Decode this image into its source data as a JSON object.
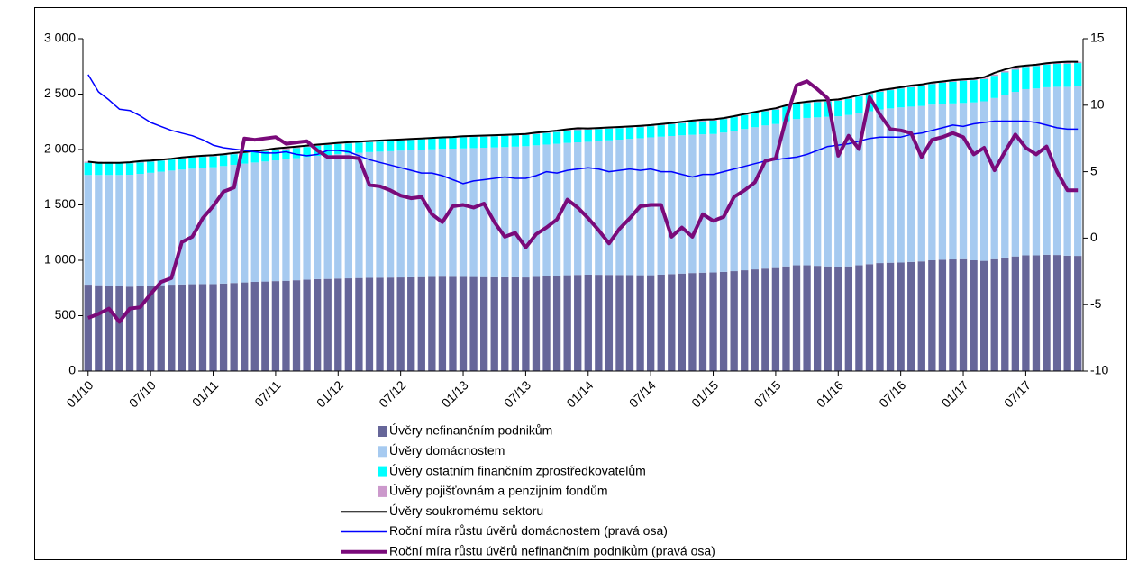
{
  "chart_data": {
    "type": "combo",
    "categories": [
      "01/10",
      null,
      null,
      null,
      null,
      null,
      "07/10",
      null,
      null,
      null,
      null,
      null,
      "01/11",
      null,
      null,
      null,
      null,
      null,
      "07/11",
      null,
      null,
      null,
      null,
      null,
      "01/12",
      null,
      null,
      null,
      null,
      null,
      "07/12",
      null,
      null,
      null,
      null,
      null,
      "01/13",
      null,
      null,
      null,
      null,
      null,
      "07/13",
      null,
      null,
      null,
      null,
      null,
      "01/14",
      null,
      null,
      null,
      null,
      null,
      "07/14",
      null,
      null,
      null,
      null,
      null,
      "01/15",
      null,
      null,
      null,
      null,
      null,
      "07/15",
      null,
      null,
      null,
      null,
      null,
      "01/16",
      null,
      null,
      null,
      null,
      null,
      "07/16",
      null,
      null,
      null,
      null,
      null,
      "01/17",
      null,
      null,
      null,
      null,
      null,
      "07/17",
      null,
      null,
      null,
      null,
      null
    ],
    "ylim": [
      0,
      3000
    ],
    "yticks": [
      0,
      500,
      {
        "value": 1000,
        "label": "1 000"
      },
      {
        "value": 1500,
        "label": "1 500"
      },
      {
        "value": 2000,
        "label": "2 000"
      },
      {
        "value": 2500,
        "label": "2 500"
      },
      {
        "value": 3000,
        "label": "3 000"
      }
    ],
    "y2lim": [
      -10,
      15
    ],
    "y2ticks": [
      -10,
      -5,
      0,
      5,
      10,
      15
    ],
    "series": [
      {
        "name": "Úvěry nefinančním podnikům",
        "type": "bar",
        "color": "#666699",
        "values": [
          780,
          775,
          770,
          765,
          762,
          765,
          770,
          775,
          780,
          782,
          784,
          785,
          785,
          790,
          795,
          800,
          805,
          808,
          812,
          815,
          820,
          825,
          830,
          832,
          835,
          837,
          840,
          842,
          843,
          844,
          845,
          846,
          848,
          850,
          852,
          851,
          850,
          849,
          848,
          847,
          846,
          846,
          845,
          850,
          855,
          860,
          865,
          868,
          870,
          869,
          868,
          867,
          866,
          865,
          865,
          870,
          875,
          880,
          885,
          888,
          890,
          895,
          902,
          910,
          918,
          925,
          930,
          945,
          955,
          955,
          950,
          945,
          940,
          945,
          955,
          965,
          975,
          978,
          980,
          985,
          990,
          1000,
          1005,
          1008,
          1010,
          1000,
          995,
          1010,
          1025,
          1035,
          1045,
          1045,
          1050,
          1048,
          1042,
          1040
        ]
      },
      {
        "name": "Úvěry domácnostem",
        "type": "bar",
        "color": "#a6caf0",
        "values": [
          990,
          995,
          1000,
          1005,
          1010,
          1015,
          1020,
          1025,
          1030,
          1037,
          1043,
          1049,
          1055,
          1061,
          1067,
          1073,
          1078,
          1084,
          1090,
          1096,
          1102,
          1108,
          1113,
          1119,
          1125,
          1128,
          1131,
          1135,
          1138,
          1141,
          1145,
          1148,
          1150,
          1152,
          1155,
          1157,
          1160,
          1164,
          1168,
          1172,
          1176,
          1180,
          1185,
          1188,
          1190,
          1192,
          1195,
          1197,
          1200,
          1207,
          1215,
          1222,
          1230,
          1237,
          1245,
          1246,
          1247,
          1248,
          1248,
          1249,
          1250,
          1258,
          1267,
          1275,
          1283,
          1292,
          1300,
          1310,
          1320,
          1330,
          1340,
          1350,
          1360,
          1367,
          1373,
          1380,
          1387,
          1393,
          1400,
          1402,
          1403,
          1405,
          1407,
          1408,
          1410,
          1425,
          1440,
          1455,
          1470,
          1485,
          1500,
          1506,
          1512,
          1518,
          1524,
          1530
        ]
      },
      {
        "name": "Úvěry ostatním finančním zprostředkovatelům",
        "type": "bar",
        "color": "#00ffff",
        "values": [
          110,
          110,
          108,
          106,
          104,
          102,
          100,
          100,
          100,
          100,
          100,
          100,
          98,
          97,
          96,
          95,
          94,
          92,
          90,
          90,
          90,
          90,
          90,
          90,
          90,
          90,
          90,
          90,
          90,
          90,
          92,
          93,
          95,
          96,
          97,
          99,
          100,
          100,
          100,
          100,
          100,
          100,
          100,
          102,
          104,
          106,
          108,
          110,
          110,
          108,
          106,
          104,
          102,
          100,
          100,
          103,
          107,
          110,
          114,
          117,
          120,
          122,
          123,
          125,
          127,
          128,
          130,
          132,
          133,
          135,
          137,
          138,
          140,
          145,
          150,
          155,
          160,
          165,
          170,
          175,
          180,
          185,
          190,
          195,
          200,
          200,
          200,
          200,
          200,
          200,
          200,
          202,
          204,
          206,
          208,
          210
        ]
      },
      {
        "name": "Úvěry pojišťovnám a penzijním fondům",
        "type": "bar",
        "color": "#cc99cc",
        "values": [
          10,
          10,
          10,
          10,
          10,
          10,
          10,
          10,
          10,
          10,
          10,
          10,
          10,
          10,
          10,
          10,
          10,
          10,
          10,
          10,
          10,
          10,
          10,
          10,
          10,
          10,
          10,
          10,
          10,
          10,
          10,
          10,
          10,
          10,
          10,
          10,
          10,
          10,
          10,
          10,
          10,
          10,
          10,
          10,
          10,
          10,
          10,
          10,
          10,
          10,
          10,
          10,
          10,
          10,
          10,
          10,
          10,
          10,
          10,
          10,
          12,
          12,
          12,
          12,
          12,
          12,
          12,
          12,
          12,
          12,
          12,
          12,
          12,
          12,
          12,
          12,
          12,
          12,
          12,
          12,
          12,
          12,
          12,
          12,
          12,
          12,
          12,
          12,
          12,
          12,
          12,
          12,
          12,
          12,
          12,
          12
        ]
      },
      {
        "name": "Úvěry soukromému sektoru",
        "type": "line",
        "color": "#000000",
        "width": 2,
        "values": [
          1890,
          1880,
          1880,
          1880,
          1885,
          1895,
          1900,
          1908,
          1917,
          1929,
          1937,
          1944,
          1950,
          1958,
          1968,
          1978,
          1987,
          1997,
          2010,
          2018,
          2027,
          2036,
          2045,
          2052,
          2060,
          2066,
          2071,
          2077,
          2081,
          2086,
          2090,
          2095,
          2099,
          2105,
          2110,
          2113,
          2120,
          2123,
          2126,
          2129,
          2132,
          2136,
          2140,
          2152,
          2161,
          2171,
          2183,
          2192,
          2190,
          2194,
          2199,
          2203,
          2208,
          2214,
          2220,
          2229,
          2239,
          2250,
          2261,
          2269,
          2272,
          2284,
          2301,
          2320,
          2338,
          2357,
          2372,
          2399,
          2420,
          2432,
          2442,
          2445,
          2452,
          2469,
          2490,
          2512,
          2534,
          2548,
          2562,
          2577,
          2587,
          2604,
          2614,
          2625,
          2632,
          2637,
          2652,
          2692,
          2722,
          2747,
          2757,
          2765,
          2778,
          2786,
          2792,
          2792
        ]
      },
      {
        "name": "Roční míra růstu úvěrů domácnostem (pravá osa)",
        "type": "line",
        "axis": "y2",
        "color": "#0000ff",
        "width": 1.5,
        "values": [
          12.3,
          11.0,
          10.4,
          9.7,
          9.6,
          9.2,
          8.7,
          8.4,
          8.1,
          7.9,
          7.7,
          7.4,
          7.0,
          6.8,
          6.7,
          6.6,
          6.5,
          6.4,
          6.4,
          6.5,
          6.3,
          6.2,
          6.3,
          6.6,
          6.6,
          6.5,
          6.2,
          5.9,
          5.7,
          5.5,
          5.3,
          5.1,
          4.9,
          4.9,
          4.7,
          4.4,
          4.1,
          4.3,
          4.4,
          4.5,
          4.6,
          4.5,
          4.5,
          4.7,
          5.0,
          4.9,
          5.1,
          5.2,
          5.3,
          5.2,
          5.0,
          5.1,
          5.2,
          5.1,
          5.2,
          5.0,
          5.0,
          4.8,
          4.6,
          4.8,
          4.8,
          5.0,
          5.2,
          5.4,
          5.6,
          5.8,
          5.9,
          6.0,
          6.1,
          6.3,
          6.6,
          6.9,
          7.0,
          7.1,
          7.3,
          7.5,
          7.6,
          7.6,
          7.6,
          7.8,
          7.9,
          8.1,
          8.3,
          8.5,
          8.4,
          8.6,
          8.7,
          8.8,
          8.8,
          8.8,
          8.8,
          8.7,
          8.5,
          8.3,
          8.2,
          8.2
        ]
      },
      {
        "name": "Roční míra růstu úvěrů nefinančním podnikům (pravá osa)",
        "type": "line",
        "axis": "y2",
        "color": "#7a0a7a",
        "width": 4,
        "values": [
          -6.0,
          -5.7,
          -5.3,
          -6.3,
          -5.3,
          -5.2,
          -4.2,
          -3.3,
          -3.0,
          -0.3,
          0.1,
          1.5,
          2.4,
          3.5,
          3.8,
          7.5,
          7.4,
          7.5,
          7.6,
          7.1,
          7.2,
          7.3,
          6.6,
          6.1,
          6.1,
          6.1,
          6.0,
          4.0,
          3.9,
          3.6,
          3.2,
          3.0,
          3.1,
          1.8,
          1.2,
          2.4,
          2.5,
          2.3,
          2.6,
          1.2,
          0.1,
          0.4,
          -0.7,
          0.3,
          0.8,
          1.4,
          2.9,
          2.3,
          1.5,
          0.6,
          -0.4,
          0.7,
          1.5,
          2.4,
          2.5,
          2.5,
          0.1,
          0.8,
          0.1,
          1.8,
          1.3,
          1.6,
          3.1,
          3.6,
          4.2,
          5.8,
          6.0,
          9.0,
          11.5,
          11.8,
          11.2,
          10.5,
          6.2,
          7.7,
          6.7,
          10.6,
          9.3,
          8.2,
          8.1,
          7.9,
          6.1,
          7.4,
          7.6,
          7.9,
          7.6,
          6.3,
          6.8,
          5.1,
          6.5,
          7.8,
          6.8,
          6.3,
          6.9,
          5.0,
          3.6,
          3.6
        ]
      }
    ]
  }
}
